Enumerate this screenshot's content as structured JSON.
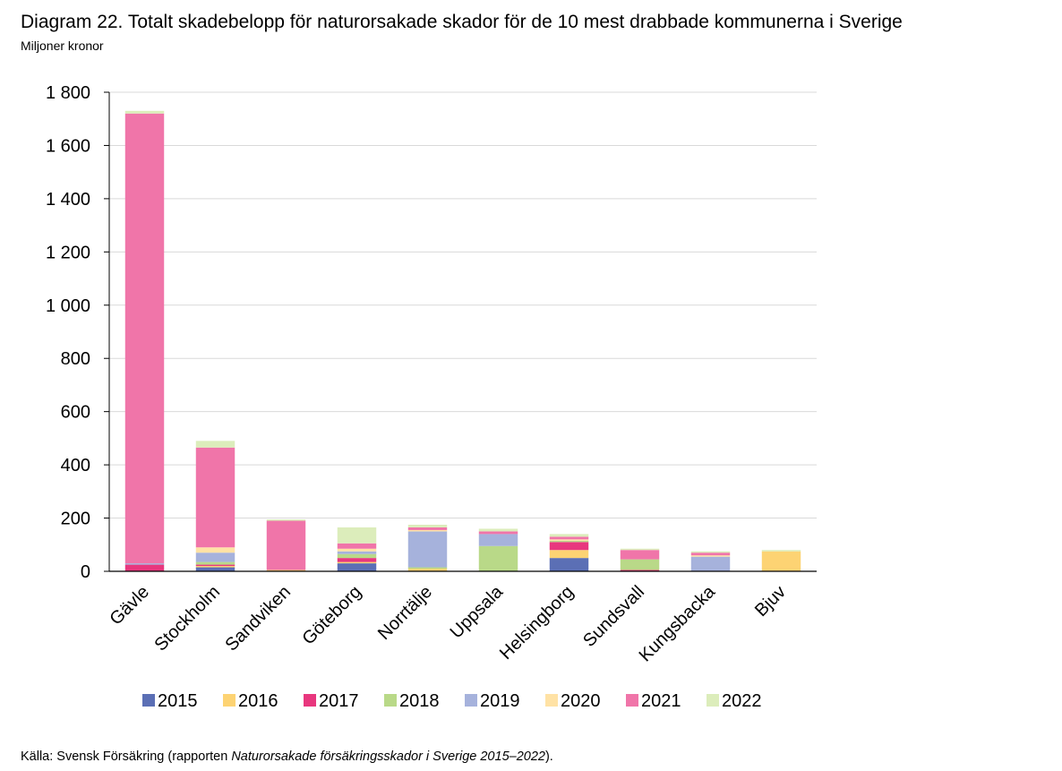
{
  "title": "Diagram 22. Totalt skadebelopp för naturorsakade skador för de 10 mest drabbade kommunerna i Sverige",
  "subtitle": "Miljoner kronor",
  "source": {
    "prefix": "Källa: Svensk Försäkring (rapporten ",
    "report": "Naturorsakade försäkringsskador i Sverige 2015–2022",
    "suffix": ")."
  },
  "colors": {
    "2015": "#5b6fb5",
    "2016": "#fdd373",
    "2017": "#e8377e",
    "2018": "#b9d988",
    "2019": "#a6b2dc",
    "2020": "#ffe2a5",
    "2021": "#f075a9",
    "2022": "#dcedbb",
    "grid": "#d9d9d9",
    "axis": "#000000"
  },
  "chart_data": {
    "type": "bar",
    "stacked": true,
    "categories": [
      "Gävle",
      "Stockholm",
      "Sandviken",
      "Göteborg",
      "Norrtälje",
      "Uppsala",
      "Helsingborg",
      "Sundsvall",
      "Kungsbacka",
      "Bjuv"
    ],
    "series": [
      {
        "name": "2015",
        "values": [
          0,
          15,
          0,
          30,
          0,
          0,
          50,
          0,
          0,
          0
        ]
      },
      {
        "name": "2016",
        "values": [
          0,
          5,
          5,
          5,
          10,
          0,
          30,
          0,
          0,
          75
        ]
      },
      {
        "name": "2017",
        "values": [
          25,
          5,
          0,
          15,
          0,
          0,
          30,
          5,
          0,
          0
        ]
      },
      {
        "name": "2018",
        "values": [
          0,
          10,
          0,
          15,
          5,
          95,
          5,
          40,
          0,
          0
        ]
      },
      {
        "name": "2019",
        "values": [
          5,
          35,
          0,
          10,
          135,
          45,
          0,
          0,
          55,
          0
        ]
      },
      {
        "name": "2020",
        "values": [
          0,
          20,
          0,
          10,
          5,
          0,
          5,
          0,
          5,
          0
        ]
      },
      {
        "name": "2021",
        "values": [
          1690,
          375,
          185,
          20,
          10,
          10,
          10,
          35,
          10,
          0
        ]
      },
      {
        "name": "2022",
        "values": [
          10,
          25,
          5,
          60,
          10,
          10,
          10,
          5,
          5,
          5
        ]
      }
    ],
    "yticks": [
      "1 800",
      "1 600",
      "1 400",
      "1 200",
      "1 000",
      "800",
      "600",
      "400",
      "200",
      "0"
    ],
    "ylim": [
      0,
      1800
    ],
    "ytick_step": 200,
    "grid": true,
    "legend": "bottom"
  }
}
